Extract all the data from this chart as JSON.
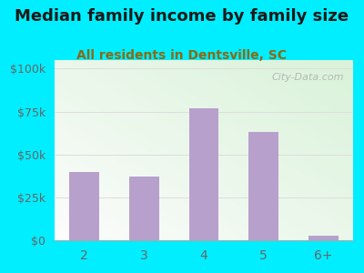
{
  "title": "Median family income by family size",
  "subtitle": "All residents in Dentsville, SC",
  "categories": [
    "2",
    "3",
    "4",
    "5",
    "6+"
  ],
  "values": [
    40000,
    37000,
    77000,
    63000,
    2500
  ],
  "bar_color": "#b8a0cc",
  "title_fontsize": 13,
  "subtitle_fontsize": 10,
  "background_outer": "#00eeff",
  "yticks": [
    0,
    25000,
    50000,
    75000,
    100000
  ],
  "ytick_labels": [
    "$0",
    "$25k",
    "$50k",
    "$75k",
    "$100k"
  ],
  "ylim": [
    0,
    105000
  ],
  "watermark": "City-Data.com",
  "title_color": "#1a1a1a",
  "subtitle_color": "#8b6914",
  "tick_color": "#666666",
  "grid_color": "#dddddd"
}
